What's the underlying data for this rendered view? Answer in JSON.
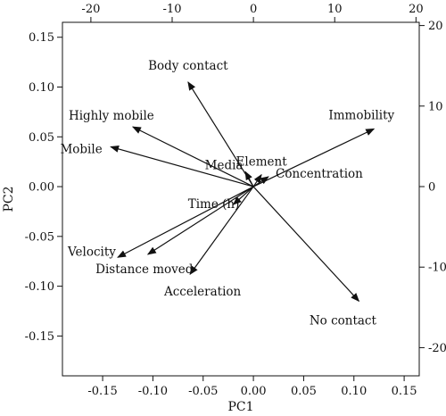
{
  "chart_data": {
    "type": "biplot",
    "xlabel": "PC1",
    "ylabel": "PC2",
    "xlim": [
      -0.19,
      0.165
    ],
    "ylim": [
      -0.19,
      0.165
    ],
    "x_ticks": [
      "-0.15",
      "-0.10",
      "-0.05",
      "0.00",
      "0.05",
      "0.10",
      "0.15"
    ],
    "y_ticks": [
      "-0.15",
      "-0.10",
      "-0.05",
      "0.00",
      "0.05",
      "0.10",
      "0.15"
    ],
    "secondary_x_ticks": [
      "-20",
      "-10",
      "0",
      "10",
      "20"
    ],
    "secondary_y_ticks": [
      "20",
      "10",
      "0",
      "-10",
      "-20"
    ],
    "secondary_lim": [
      -23.5,
      20.4
    ],
    "grid": false,
    "vectors": [
      {
        "name": "Body contact",
        "x": -0.065,
        "y": 0.105
      },
      {
        "name": "Highly mobile",
        "x": -0.12,
        "y": 0.06
      },
      {
        "name": "Mobile",
        "x": -0.142,
        "y": 0.04
      },
      {
        "name": "Media",
        "x": -0.008,
        "y": 0.015
      },
      {
        "name": "Element",
        "x": 0.008,
        "y": 0.012
      },
      {
        "name": "Concentration",
        "x": 0.015,
        "y": 0.01
      },
      {
        "name": "Immobility",
        "x": 0.12,
        "y": 0.058
      },
      {
        "name": "Time (h)",
        "x": -0.02,
        "y": -0.018
      },
      {
        "name": "Velocity",
        "x": -0.135,
        "y": -0.071
      },
      {
        "name": "Distance moved",
        "x": -0.105,
        "y": -0.068
      },
      {
        "name": "Acceleration",
        "x": -0.063,
        "y": -0.088
      },
      {
        "name": "No contact",
        "x": 0.105,
        "y": -0.115
      }
    ]
  }
}
